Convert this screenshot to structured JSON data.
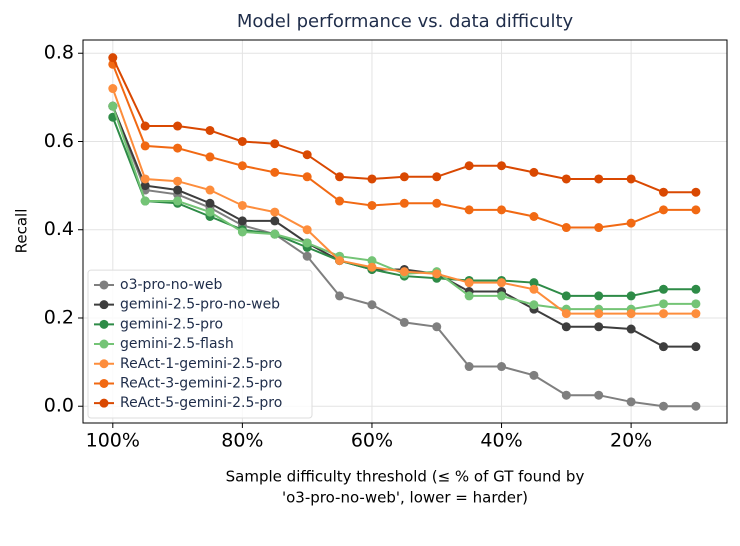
{
  "chart_data": {
    "type": "line",
    "title": "Model performance vs. data difficulty",
    "xlabel": [
      "Sample difficulty threshold (≤ % of GT found by",
      "'o3-pro-no-web', lower = harder)"
    ],
    "ylabel": "Recall",
    "x": [
      100,
      95,
      90,
      85,
      80,
      75,
      70,
      65,
      60,
      55,
      50,
      45,
      40,
      35,
      30,
      25,
      20,
      15,
      10
    ],
    "xlim": [
      104.6,
      5.2
    ],
    "xticks": [
      {
        "value": 100,
        "label": "100%"
      },
      {
        "value": 80,
        "label": "80%"
      },
      {
        "value": 60,
        "label": "60%"
      },
      {
        "value": 40,
        "label": "40%"
      },
      {
        "value": 20,
        "label": "20%"
      }
    ],
    "ylim": [
      -0.038,
      0.83
    ],
    "yticks": [
      {
        "value": 0,
        "label": "0.0"
      },
      0.2,
      0.4,
      0.6,
      0.8
    ],
    "grid": true,
    "legend": "lower left",
    "series": [
      {
        "name": "o3-pro-no-web",
        "color": "#7f7f7f",
        "values": [
          0.68,
          0.49,
          0.48,
          0.45,
          0.41,
          0.39,
          0.34,
          0.25,
          0.23,
          0.19,
          0.18,
          0.09,
          0.09,
          0.07,
          0.025,
          0.025,
          0.01,
          0.0,
          0.0
        ]
      },
      {
        "name": "gemini-2.5-pro-no-web",
        "color": "#3d3d3d",
        "values": [
          0.68,
          0.5,
          0.49,
          0.46,
          0.42,
          0.42,
          0.37,
          0.33,
          0.31,
          0.31,
          0.3,
          0.26,
          0.26,
          0.22,
          0.18,
          0.18,
          0.175,
          0.135,
          0.135
        ]
      },
      {
        "name": "gemini-2.5-pro",
        "color": "#2e8b47",
        "values": [
          0.655,
          0.465,
          0.46,
          0.43,
          0.4,
          0.39,
          0.36,
          0.33,
          0.31,
          0.295,
          0.29,
          0.285,
          0.285,
          0.28,
          0.25,
          0.25,
          0.25,
          0.265,
          0.265
        ]
      },
      {
        "name": "gemini-2.5-flash",
        "color": "#74c476",
        "values": [
          0.68,
          0.465,
          0.465,
          0.44,
          0.395,
          0.39,
          0.37,
          0.34,
          0.33,
          0.3,
          0.305,
          0.25,
          0.25,
          0.23,
          0.22,
          0.22,
          0.22,
          0.232,
          0.232
        ]
      },
      {
        "name": "ReAct-1-gemini-2.5-pro",
        "color": "#fd8d3c",
        "values": [
          0.72,
          0.515,
          0.51,
          0.49,
          0.455,
          0.44,
          0.4,
          0.33,
          0.315,
          0.305,
          0.3,
          0.28,
          0.28,
          0.265,
          0.21,
          0.21,
          0.21,
          0.21,
          0.21
        ]
      },
      {
        "name": "ReAct-3-gemini-2.5-pro",
        "color": "#f16913",
        "values": [
          0.775,
          0.59,
          0.585,
          0.565,
          0.545,
          0.53,
          0.52,
          0.465,
          0.455,
          0.46,
          0.46,
          0.445,
          0.445,
          0.43,
          0.405,
          0.405,
          0.415,
          0.445,
          0.445
        ]
      },
      {
        "name": "ReAct-5-gemini-2.5-pro",
        "color": "#d94801",
        "values": [
          0.79,
          0.635,
          0.635,
          0.625,
          0.6,
          0.595,
          0.57,
          0.52,
          0.515,
          0.52,
          0.52,
          0.545,
          0.545,
          0.53,
          0.515,
          0.515,
          0.515,
          0.485,
          0.485
        ]
      }
    ]
  }
}
